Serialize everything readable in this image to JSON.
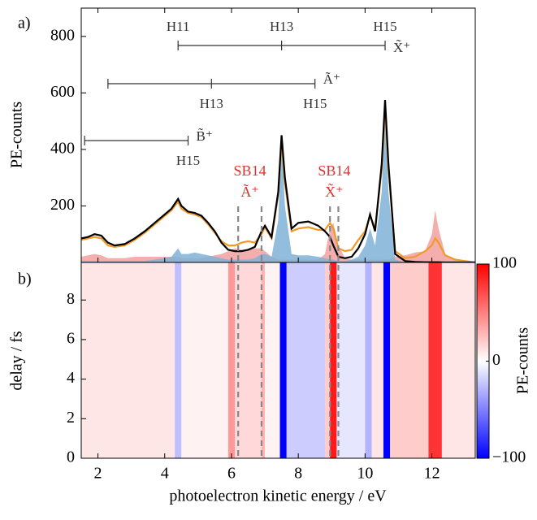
{
  "chart_data": [
    {
      "type": "line",
      "panel_label": "a)",
      "ylabel": "PE-counts",
      "x": [
        1.5,
        1.7,
        1.9,
        2.1,
        2.3,
        2.5,
        2.8,
        3.1,
        3.4,
        3.7,
        4.0,
        4.2,
        4.4,
        4.5,
        4.7,
        4.9,
        5.1,
        5.3,
        5.5,
        5.7,
        5.9,
        6.1,
        6.3,
        6.5,
        6.7,
        6.9,
        7.0,
        7.2,
        7.4,
        7.5,
        7.6,
        7.8,
        8.0,
        8.3,
        8.6,
        8.8,
        8.95,
        9.05,
        9.2,
        9.4,
        9.6,
        9.8,
        10.0,
        10.15,
        10.3,
        10.5,
        10.6,
        10.7,
        10.9,
        11.2,
        11.5,
        11.8,
        12.0,
        12.1,
        12.2,
        12.4,
        12.7,
        13.0,
        13.3
      ],
      "series": [
        {
          "color": "#f2a0a0",
          "fill": true,
          "values": [
            20,
            25,
            30,
            25,
            15,
            15,
            15,
            20,
            20,
            20,
            20,
            20,
            20,
            15,
            15,
            15,
            15,
            20,
            25,
            30,
            40,
            50,
            45,
            45,
            50,
            50,
            40,
            20,
            10,
            10,
            10,
            10,
            10,
            10,
            10,
            30,
            120,
            140,
            60,
            15,
            10,
            10,
            10,
            10,
            10,
            10,
            10,
            10,
            20,
            25,
            35,
            40,
            100,
            185,
            120,
            30,
            10,
            5,
            0
          ]
        },
        {
          "color": "#7fb2d6",
          "fill": true,
          "values": [
            5,
            5,
            5,
            5,
            5,
            5,
            5,
            5,
            5,
            10,
            15,
            20,
            50,
            30,
            30,
            35,
            30,
            25,
            20,
            15,
            10,
            10,
            10,
            10,
            15,
            30,
            30,
            20,
            150,
            450,
            200,
            30,
            25,
            25,
            20,
            15,
            10,
            10,
            5,
            5,
            10,
            20,
            60,
            120,
            60,
            250,
            560,
            250,
            10,
            0,
            0,
            0,
            0,
            0,
            0,
            0,
            0,
            0,
            0
          ]
        },
        {
          "color": "#f09a28",
          "fill": false,
          "values": [
            80,
            85,
            90,
            85,
            60,
            55,
            60,
            80,
            105,
            135,
            165,
            185,
            215,
            190,
            175,
            170,
            160,
            135,
            105,
            75,
            60,
            60,
            70,
            75,
            70,
            100,
            125,
            85,
            240,
            430,
            280,
            110,
            120,
            125,
            115,
            115,
            140,
            120,
            50,
            40,
            45,
            80,
            110,
            165,
            120,
            330,
            550,
            330,
            40,
            15,
            20,
            40,
            60,
            85,
            70,
            25,
            10,
            5,
            0
          ]
        },
        {
          "color": "#000000",
          "fill": false,
          "values": [
            85,
            90,
            100,
            95,
            70,
            60,
            65,
            85,
            110,
            140,
            170,
            190,
            225,
            200,
            180,
            175,
            165,
            140,
            110,
            70,
            45,
            40,
            40,
            45,
            55,
            110,
            130,
            90,
            250,
            450,
            300,
            120,
            140,
            145,
            130,
            110,
            90,
            60,
            20,
            15,
            20,
            50,
            100,
            170,
            110,
            350,
            575,
            350,
            30,
            5,
            2,
            1,
            1,
            1,
            1,
            0,
            0,
            0,
            0
          ]
        }
      ],
      "xlim": [
        1.5,
        13.3
      ],
      "xticks": [
        2,
        4,
        6,
        8,
        10,
        12
      ],
      "ylim": [
        0,
        900
      ],
      "yticks": [
        0,
        200,
        400,
        600,
        800
      ],
      "ladders": [
        {
          "state": "X̃⁺",
          "x": [
            4.4,
            7.5,
            10.6
          ],
          "harmonics": [
            "H11",
            "H13",
            "H15"
          ]
        },
        {
          "state": "Ã⁺",
          "x": [
            2.3,
            5.4,
            8.5
          ],
          "harmonics": [
            null,
            "H13",
            "H15"
          ]
        },
        {
          "state": "B̃⁺",
          "x": [
            1.6,
            4.7
          ],
          "harmonics": [
            null,
            "H15"
          ]
        }
      ],
      "sidebands": [
        {
          "label": "SB14",
          "state": "Ã⁺",
          "x": [
            6.2,
            6.9
          ]
        },
        {
          "label": "SB14",
          "state": "X̃⁺",
          "x": [
            8.95,
            9.2
          ]
        }
      ]
    },
    {
      "type": "heatmap",
      "panel_label": "b)",
      "ylabel": "delay / fs",
      "xlabel": "photoelectron kinetic energy / eV",
      "x_edges": [
        1.5,
        4.3,
        4.5,
        5.9,
        6.1,
        6.9,
        7.0,
        7.45,
        7.65,
        8.8,
        8.95,
        9.15,
        10.0,
        10.2,
        10.55,
        10.75,
        11.9,
        12.3,
        13.3
      ],
      "z": [
        10,
        -25,
        5,
        40,
        15,
        30,
        5,
        -100,
        -20,
        20,
        90,
        -10,
        -30,
        10,
        -100,
        20,
        80,
        10
      ],
      "xlim": [
        1.5,
        13.3
      ],
      "xticks": [
        2,
        4,
        6,
        8,
        10,
        12
      ],
      "ylim": [
        0,
        9.9
      ],
      "yticks": [
        0,
        2,
        4,
        6,
        8
      ],
      "zlim": [
        -100,
        100
      ],
      "colormap": [
        "#0000ff",
        "#ffffff",
        "#ff0000"
      ],
      "colorbar": {
        "label": "PE-counts",
        "ticks": [
          100,
          0,
          {
            "value": -100,
            "label": "−100"
          }
        ]
      }
    }
  ]
}
